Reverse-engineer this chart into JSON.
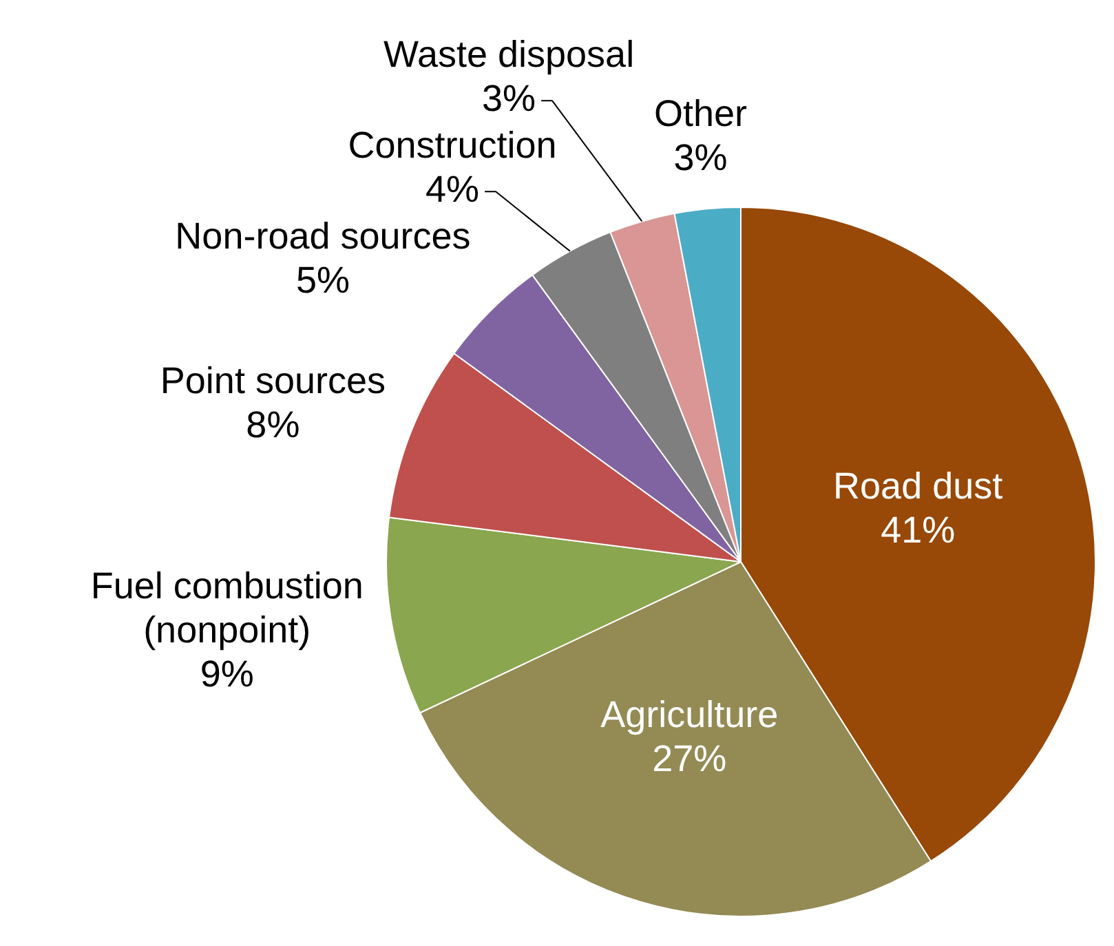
{
  "chart_data": {
    "type": "pie",
    "categories": [
      "Road dust",
      "Agriculture",
      "Fuel combustion (nonpoint)",
      "Point sources",
      "Non-road sources",
      "Construction",
      "Waste disposal",
      "Other"
    ],
    "values": [
      41,
      27,
      9,
      8,
      5,
      4,
      3,
      3
    ],
    "colors": [
      "#984807",
      "#948a54",
      "#8aa64f",
      "#c0504d",
      "#8064a2",
      "#7f7f7f",
      "#d99694",
      "#4bacc6"
    ],
    "value_labels": [
      "41%",
      "27%",
      "9%",
      "8%",
      "5%",
      "4%",
      "3%",
      "3%"
    ]
  }
}
